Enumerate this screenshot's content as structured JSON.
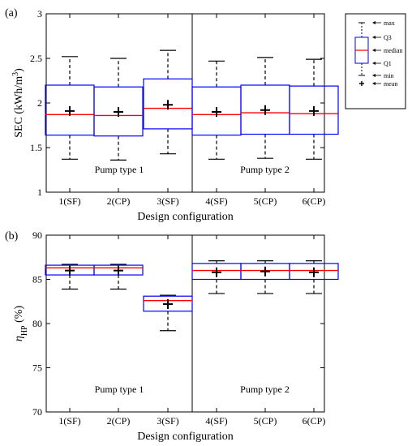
{
  "chart_data": [
    {
      "panel_label": "(a)",
      "type": "box",
      "categories": [
        "1(SF)",
        "2(CP)",
        "3(SF)",
        "4(SF)",
        "5(CP)",
        "6(CP)"
      ],
      "groups": [
        {
          "label": "Pump type 1",
          "categories": [
            "1(SF)",
            "2(CP)",
            "3(SF)"
          ]
        },
        {
          "label": "Pump type 2",
          "categories": [
            "4(SF)",
            "5(CP)",
            "6(CP)"
          ]
        }
      ],
      "xlabel": "Design configuration",
      "ylabel": "SEC (kWh/m",
      "ylabel_sup": "3",
      "ylabel_close": ")",
      "ylim": [
        1,
        3
      ],
      "yticks": [
        "1",
        "1.5",
        "2",
        "2.5",
        "3"
      ],
      "ytick_values": [
        1,
        1.5,
        2,
        2.5,
        3
      ],
      "boxes": [
        {
          "category": "1(SF)",
          "min": 1.37,
          "q1": 1.64,
          "median": 1.87,
          "q3": 2.2,
          "max": 2.52,
          "mean": 1.91
        },
        {
          "category": "2(CP)",
          "min": 1.36,
          "q1": 1.63,
          "median": 1.86,
          "q3": 2.18,
          "max": 2.5,
          "mean": 1.9
        },
        {
          "category": "3(SF)",
          "min": 1.43,
          "q1": 1.71,
          "median": 1.94,
          "q3": 2.27,
          "max": 2.59,
          "mean": 1.98
        },
        {
          "category": "4(SF)",
          "min": 1.37,
          "q1": 1.64,
          "median": 1.87,
          "q3": 2.18,
          "max": 2.47,
          "mean": 1.9
        },
        {
          "category": "5(CP)",
          "min": 1.38,
          "q1": 1.65,
          "median": 1.89,
          "q3": 2.2,
          "max": 2.51,
          "mean": 1.92
        },
        {
          "category": "6(CP)",
          "min": 1.37,
          "q1": 1.65,
          "median": 1.88,
          "q3": 2.19,
          "max": 2.49,
          "mean": 1.91
        }
      ],
      "colors": {
        "box": "#0000ff",
        "median": "#ff0000",
        "whisker": "#000000",
        "mean": "#000000"
      },
      "legend": {
        "placement": "right",
        "items": [
          "max",
          "Q3",
          "median",
          "Q1",
          "min",
          "mean"
        ]
      }
    },
    {
      "panel_label": "(b)",
      "type": "box",
      "categories": [
        "1(SF)",
        "2(CP)",
        "3(SF)",
        "4(SF)",
        "5(CP)",
        "6(CP)"
      ],
      "groups": [
        {
          "label": "Pump type 1",
          "categories": [
            "1(SF)",
            "2(CP)",
            "3(SF)"
          ]
        },
        {
          "label": "Pump type 2",
          "categories": [
            "4(SF)",
            "5(CP)",
            "6(CP)"
          ]
        }
      ],
      "xlabel": "Design configuration",
      "ylabel": "η",
      "ylabel_sub": "HP",
      "ylabel_tail": " (%)",
      "ylim": [
        70,
        90
      ],
      "yticks": [
        "70",
        "75",
        "80",
        "85",
        "90"
      ],
      "ytick_values": [
        70,
        75,
        80,
        85,
        90
      ],
      "boxes": [
        {
          "category": "1(SF)",
          "min": 83.9,
          "q1": 85.5,
          "median": 86.3,
          "q3": 86.6,
          "max": 86.7,
          "mean": 86.0
        },
        {
          "category": "2(CP)",
          "min": 83.9,
          "q1": 85.5,
          "median": 86.3,
          "q3": 86.6,
          "max": 86.7,
          "mean": 86.0
        },
        {
          "category": "3(SF)",
          "min": 79.2,
          "q1": 81.4,
          "median": 82.6,
          "q3": 83.1,
          "max": 83.2,
          "mean": 82.2
        },
        {
          "category": "4(SF)",
          "min": 83.4,
          "q1": 85.0,
          "median": 86.0,
          "q3": 86.8,
          "max": 87.1,
          "mean": 85.8
        },
        {
          "category": "5(CP)",
          "min": 83.4,
          "q1": 85.0,
          "median": 86.0,
          "q3": 86.8,
          "max": 87.1,
          "mean": 85.9
        },
        {
          "category": "6(CP)",
          "min": 83.4,
          "q1": 85.0,
          "median": 86.0,
          "q3": 86.8,
          "max": 87.1,
          "mean": 85.8
        }
      ],
      "colors": {
        "box": "#0000ff",
        "median": "#ff0000",
        "whisker": "#000000",
        "mean": "#000000"
      }
    }
  ]
}
